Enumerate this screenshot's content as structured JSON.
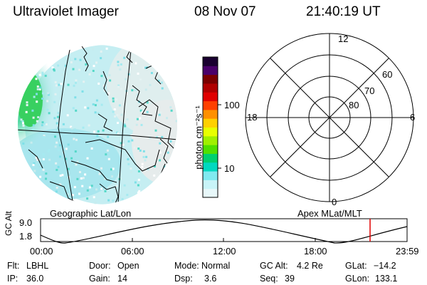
{
  "header": {
    "instrument": "Ultraviolet Imager",
    "date": "08 Nov 07",
    "time": "21:40:19 UT"
  },
  "image_panel": {
    "label": "Geographic Lat/Lon"
  },
  "colorbar": {
    "label": "photon cm⁻²s⁻¹",
    "ticks": [
      "100",
      "10"
    ],
    "colors": [
      "#1a0030",
      "#4a006a",
      "#7a0000",
      "#b00000",
      "#e00000",
      "#ff4000",
      "#ff9000",
      "#ffd000",
      "#e8ff00",
      "#a0f000",
      "#50e000",
      "#00d070",
      "#00d8c0",
      "#80eaf0",
      "#c8f4f8",
      "#e8f8fa"
    ]
  },
  "polar": {
    "label": "Apex MLat/MLT",
    "mlt_labels": {
      "top": "12",
      "right": "6",
      "bottom": "0",
      "left": "18"
    },
    "lat_labels": [
      "60",
      "70",
      "80"
    ]
  },
  "timeline": {
    "ylabel": "GC Alt",
    "ymax": "9.0",
    "ymin": "1.8",
    "ticks": [
      "00:00",
      "06:00",
      "12:00",
      "18:00",
      "23:59"
    ],
    "marker_color": "#e00000"
  },
  "info": {
    "filter_label": "Flt:",
    "filter": "LBHL",
    "ip_label": "IP:",
    "ip": "36.0",
    "door_label": "Door:",
    "door": "Open",
    "gain_label": "Gain:",
    "gain": "14",
    "mode_label": "Mode:",
    "mode": "Normal",
    "dsp_label": "Dsp:",
    "dsp": "3.6",
    "gcalt_label": "GC Alt:",
    "gcalt": "4.2 Re",
    "seq_label": "Seq:",
    "seq": "39",
    "glat_label": "GLat:",
    "glat": "−14.2",
    "glon_label": "GLon:",
    "glon": "133.1"
  }
}
